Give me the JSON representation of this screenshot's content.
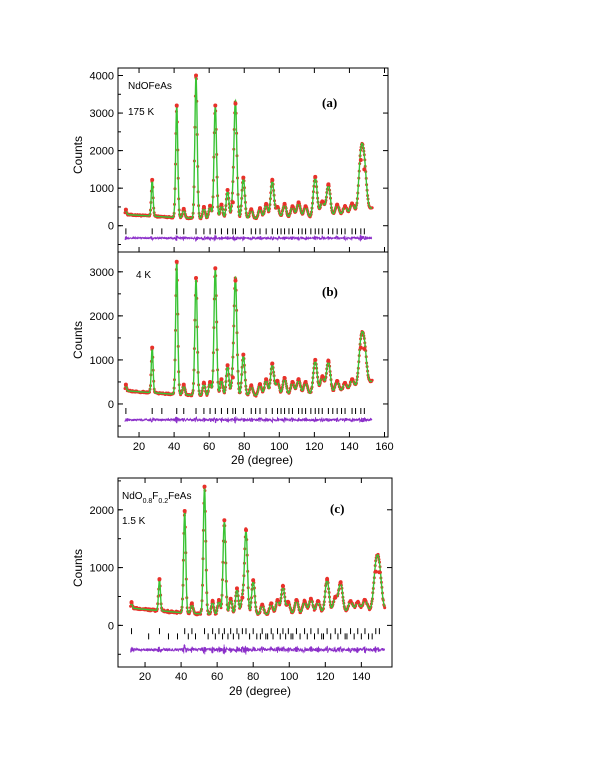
{
  "chart_data": [
    {
      "type": "scatter",
      "panel_label": "(a)",
      "sample": {
        "base": "NdOFeAs",
        "sub": []
      },
      "temperature": "175 K",
      "ylabel": "Counts",
      "xlabel": "",
      "xlim": [
        8,
        162
      ],
      "ylim": [
        -700,
        4200
      ],
      "yticks": [
        0,
        1000,
        2000,
        3000,
        4000
      ],
      "xticks": [],
      "background": [
        [
          12,
          300
        ],
        [
          40,
          220
        ],
        [
          60,
          180
        ],
        [
          100,
          190
        ],
        [
          140,
          240
        ],
        [
          153,
          470
        ]
      ],
      "peaks": [
        {
          "x": 12.5,
          "y": 430
        },
        {
          "x": 27.5,
          "y": 1220
        },
        {
          "x": 41.5,
          "y": 3200
        },
        {
          "x": 45.5,
          "y": 450
        },
        {
          "x": 52.5,
          "y": 4000
        },
        {
          "x": 57.0,
          "y": 500
        },
        {
          "x": 60.5,
          "y": 530
        },
        {
          "x": 63.5,
          "y": 3200
        },
        {
          "x": 67.0,
          "y": 560
        },
        {
          "x": 70.5,
          "y": 950
        },
        {
          "x": 73.5,
          "y": 620
        },
        {
          "x": 75.0,
          "y": 3250
        },
        {
          "x": 79.5,
          "y": 1280
        },
        {
          "x": 84.0,
          "y": 440
        },
        {
          "x": 89.0,
          "y": 470
        },
        {
          "x": 92.5,
          "y": 580
        },
        {
          "x": 96.0,
          "y": 1220
        },
        {
          "x": 99.0,
          "y": 500
        },
        {
          "x": 103.0,
          "y": 580
        },
        {
          "x": 107.5,
          "y": 520
        },
        {
          "x": 111.0,
          "y": 620
        },
        {
          "x": 115.0,
          "y": 520
        },
        {
          "x": 120.5,
          "y": 1300
        },
        {
          "x": 124.5,
          "y": 640
        },
        {
          "x": 128.0,
          "y": 1100
        },
        {
          "x": 133.0,
          "y": 560
        },
        {
          "x": 137.5,
          "y": 520
        },
        {
          "x": 141.5,
          "y": 590
        },
        {
          "x": 146.5,
          "y": 1750
        },
        {
          "x": 148.5,
          "y": 1500
        }
      ],
      "tick_rows": [
        -150
      ],
      "reflections": [
        [
          12.5,
          27.5,
          33,
          41.5,
          45.5,
          52.5,
          57,
          60.5,
          63.5,
          67,
          70.5,
          73.5,
          75,
          79.5,
          84,
          86.5,
          89,
          92.5,
          96,
          99,
          101,
          103,
          105.5,
          107.5,
          111,
          113,
          115,
          118,
          120.5,
          122.5,
          124.5,
          128,
          130.5,
          133,
          135.5,
          137.5,
          141.5,
          143.5,
          146.5,
          148.5
        ]
      ],
      "diff_offset": -330
    },
    {
      "type": "scatter",
      "panel_label": "(b)",
      "sample": {
        "base": "",
        "sub": []
      },
      "temperature": "4 K",
      "ylabel": "Counts",
      "xlabel": "2θ (degree)",
      "xlim": [
        8,
        162
      ],
      "ylim": [
        -750,
        3450
      ],
      "yticks": [
        0,
        1000,
        2000,
        3000
      ],
      "xticks": [
        20,
        40,
        60,
        80,
        100,
        120,
        140,
        160
      ],
      "background": [
        [
          12,
          300
        ],
        [
          40,
          220
        ],
        [
          60,
          180
        ],
        [
          100,
          190
        ],
        [
          140,
          250
        ],
        [
          153,
          520
        ]
      ],
      "peaks": [
        {
          "x": 12.5,
          "y": 440
        },
        {
          "x": 27.5,
          "y": 1280
        },
        {
          "x": 41.5,
          "y": 3230
        },
        {
          "x": 45.5,
          "y": 440
        },
        {
          "x": 52.5,
          "y": 2860
        },
        {
          "x": 57.0,
          "y": 480
        },
        {
          "x": 60.5,
          "y": 500
        },
        {
          "x": 63.5,
          "y": 3080
        },
        {
          "x": 67.0,
          "y": 560
        },
        {
          "x": 70.5,
          "y": 880
        },
        {
          "x": 73.5,
          "y": 600
        },
        {
          "x": 75.0,
          "y": 2800
        },
        {
          "x": 79.5,
          "y": 1120
        },
        {
          "x": 84.0,
          "y": 420
        },
        {
          "x": 89.0,
          "y": 450
        },
        {
          "x": 92.5,
          "y": 560
        },
        {
          "x": 96.0,
          "y": 920
        },
        {
          "x": 99.0,
          "y": 520
        },
        {
          "x": 103.0,
          "y": 590
        },
        {
          "x": 107.5,
          "y": 500
        },
        {
          "x": 111.0,
          "y": 560
        },
        {
          "x": 115.0,
          "y": 500
        },
        {
          "x": 120.5,
          "y": 1000
        },
        {
          "x": 124.5,
          "y": 620
        },
        {
          "x": 128.0,
          "y": 980
        },
        {
          "x": 133.0,
          "y": 520
        },
        {
          "x": 137.5,
          "y": 480
        },
        {
          "x": 141.5,
          "y": 560
        },
        {
          "x": 146.5,
          "y": 1280
        },
        {
          "x": 148.5,
          "y": 1250
        }
      ],
      "tick_rows": [
        -160
      ],
      "reflections": [
        [
          12.5,
          27.5,
          33,
          41.5,
          45.5,
          52.5,
          57,
          60.5,
          63.5,
          67,
          70.5,
          73.5,
          75,
          79.5,
          84,
          86.5,
          89,
          92.5,
          96,
          99,
          101,
          103,
          105.5,
          107.5,
          111,
          113,
          115,
          118,
          120.5,
          122.5,
          124.5,
          128,
          130.5,
          133,
          135.5,
          137.5,
          141.5,
          143.5,
          146.5,
          148.5
        ]
      ],
      "diff_offset": -360
    },
    {
      "type": "scatter",
      "panel_label": "(c)",
      "sample": {
        "base": "NdOFeAs",
        "sub": [
          {
            "after": "NdO",
            "text": "0.8"
          },
          {
            "after": "F",
            "text": "0.2"
          }
        ],
        "display": [
          "NdO",
          "0.8",
          "F",
          "0.2",
          "FeAs"
        ]
      },
      "temperature": "1.5 K",
      "ylabel": "Counts",
      "xlabel": "2θ (degree)",
      "xlim": [
        5,
        157
      ],
      "ylim": [
        -720,
        2550
      ],
      "yticks": [
        0,
        1000,
        2000
      ],
      "xticks": [
        20,
        40,
        60,
        80,
        100,
        120,
        140
      ],
      "background": [
        [
          12,
          300
        ],
        [
          40,
          220
        ],
        [
          60,
          180
        ],
        [
          100,
          190
        ],
        [
          140,
          240
        ],
        [
          153,
          280
        ]
      ],
      "peaks": [
        {
          "x": 12.5,
          "y": 400
        },
        {
          "x": 28.0,
          "y": 800
        },
        {
          "x": 42.0,
          "y": 1980
        },
        {
          "x": 46.0,
          "y": 380
        },
        {
          "x": 53.0,
          "y": 2400
        },
        {
          "x": 57.5,
          "y": 420
        },
        {
          "x": 61.0,
          "y": 440
        },
        {
          "x": 64.0,
          "y": 1820
        },
        {
          "x": 67.5,
          "y": 460
        },
        {
          "x": 71.0,
          "y": 640
        },
        {
          "x": 74.0,
          "y": 480
        },
        {
          "x": 76.0,
          "y": 1650
        },
        {
          "x": 80.0,
          "y": 780
        },
        {
          "x": 85.0,
          "y": 360
        },
        {
          "x": 90.0,
          "y": 380
        },
        {
          "x": 93.5,
          "y": 440
        },
        {
          "x": 96.5,
          "y": 680
        },
        {
          "x": 99.5,
          "y": 400
        },
        {
          "x": 104.0,
          "y": 440
        },
        {
          "x": 108.5,
          "y": 420
        },
        {
          "x": 112.0,
          "y": 460
        },
        {
          "x": 116.0,
          "y": 420
        },
        {
          "x": 121.0,
          "y": 800
        },
        {
          "x": 125.5,
          "y": 480
        },
        {
          "x": 128.5,
          "y": 740
        },
        {
          "x": 134.0,
          "y": 420
        },
        {
          "x": 138.0,
          "y": 400
        },
        {
          "x": 142.0,
          "y": 440
        },
        {
          "x": 148.0,
          "y": 930
        },
        {
          "x": 150.0,
          "y": 920
        }
      ],
      "tick_rows": [
        -100,
        -190
      ],
      "reflections": [
        [
          12.5,
          28,
          42,
          46,
          53,
          57.5,
          61,
          64,
          67.5,
          71,
          74,
          76,
          80,
          85,
          90,
          93.5,
          96.5,
          99.5,
          104,
          108.5,
          112,
          116,
          121,
          125.5,
          128.5,
          134,
          138,
          142,
          148,
          150
        ],
        [
          22,
          33,
          38,
          44,
          48,
          55,
          59,
          63,
          66,
          69,
          72,
          78,
          82,
          84,
          87,
          88,
          91,
          95,
          98,
          101,
          102,
          106,
          110,
          114,
          118,
          119,
          123,
          127,
          131,
          132,
          136,
          140,
          144,
          146
        ]
      ],
      "diff_offset": -420
    }
  ],
  "colors": {
    "observed": "#e8312a",
    "calculated": "#39c334",
    "difference": "#8b2fc9",
    "ticks": "#000000"
  }
}
